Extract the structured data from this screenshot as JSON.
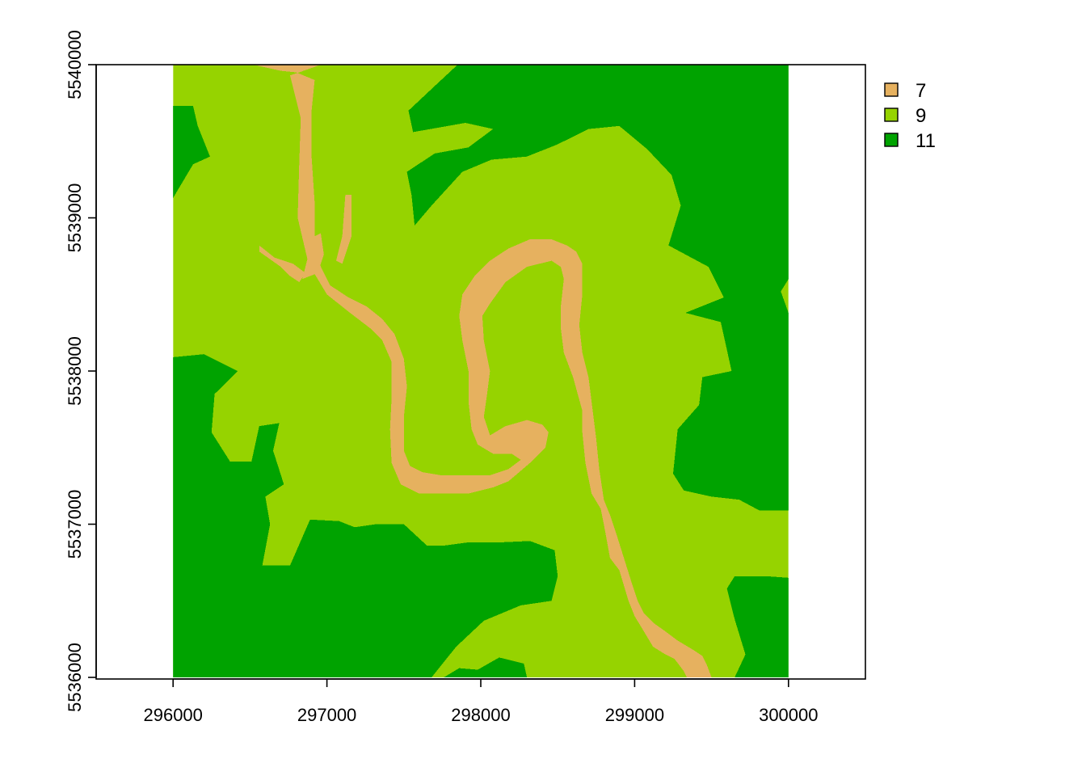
{
  "chart_data": {
    "type": "heatmap",
    "title": "",
    "xlabel": "",
    "ylabel": "",
    "xlim": [
      295500,
      300500
    ],
    "ylim": [
      5536000,
      5540000
    ],
    "raster_extent": {
      "xmin": 296000,
      "xmax": 300000,
      "ymin": 5536000,
      "ymax": 5540000
    },
    "x_ticks": [
      {
        "value": 296000,
        "label": "296000"
      },
      {
        "value": 297000,
        "label": "297000"
      },
      {
        "value": 298000,
        "label": "298000"
      },
      {
        "value": 299000,
        "label": "299000"
      },
      {
        "value": 300000,
        "label": "300000"
      }
    ],
    "y_ticks": [
      {
        "value": 5536000,
        "label": "5536000"
      },
      {
        "value": 5537000,
        "label": "5537000"
      },
      {
        "value": 5538000,
        "label": "5538000"
      },
      {
        "value": 5539000,
        "label": "5539000"
      },
      {
        "value": 5540000,
        "label": "5540000"
      }
    ],
    "legend": {
      "placement": "top-right",
      "entries": [
        {
          "label": "7",
          "value": 7,
          "color": "#E6B15F"
        },
        {
          "label": "9",
          "value": 9,
          "color": "#96D300"
        },
        {
          "label": "11",
          "value": 11,
          "color": "#00A300"
        }
      ]
    },
    "zones": [
      {
        "name": "left-upper-dark",
        "value": 11,
        "points": [
          [
            296000,
            5539730
          ],
          [
            296130,
            5539730
          ],
          [
            296160,
            5539600
          ],
          [
            296240,
            5539400
          ],
          [
            296130,
            5539350
          ],
          [
            296000,
            5539130
          ]
        ]
      },
      {
        "name": "top-right-dark",
        "value": 11,
        "points": [
          [
            297850,
            5540000
          ],
          [
            300000,
            5540000
          ],
          [
            300000,
            5538600
          ],
          [
            299950,
            5538520
          ],
          [
            300000,
            5538380
          ],
          [
            300000,
            5537090
          ],
          [
            299810,
            5537090
          ],
          [
            299680,
            5537160
          ],
          [
            299500,
            5537180
          ],
          [
            299320,
            5537220
          ],
          [
            299250,
            5537330
          ],
          [
            299280,
            5537620
          ],
          [
            299420,
            5537780
          ],
          [
            299580,
            5537920
          ],
          [
            299610,
            5537680
          ],
          [
            299400,
            5537620
          ],
          [
            299440,
            5537960
          ],
          [
            299630,
            5538000
          ],
          [
            299560,
            5538320
          ],
          [
            299330,
            5538380
          ],
          [
            299580,
            5538480
          ],
          [
            299480,
            5538680
          ],
          [
            299220,
            5538820
          ],
          [
            299300,
            5539080
          ],
          [
            299240,
            5539280
          ],
          [
            299080,
            5539450
          ],
          [
            298900,
            5539600
          ],
          [
            298700,
            5539580
          ],
          [
            298500,
            5539480
          ],
          [
            298300,
            5539400
          ],
          [
            298070,
            5539380
          ],
          [
            297880,
            5539300
          ],
          [
            297680,
            5539080
          ],
          [
            297570,
            5538950
          ],
          [
            297550,
            5539150
          ],
          [
            297520,
            5539300
          ],
          [
            297700,
            5539420
          ],
          [
            297920,
            5539460
          ],
          [
            298080,
            5539580
          ],
          [
            297900,
            5539620
          ],
          [
            297560,
            5539560
          ],
          [
            297530,
            5539700
          ],
          [
            297700,
            5539860
          ],
          [
            297850,
            5540000
          ]
        ]
      },
      {
        "name": "left-lower-dark",
        "value": 11,
        "points": [
          [
            296000,
            5538090
          ],
          [
            296200,
            5538110
          ],
          [
            296420,
            5538000
          ],
          [
            296270,
            5537850
          ],
          [
            296250,
            5537600
          ],
          [
            296370,
            5537410
          ],
          [
            296510,
            5537410
          ],
          [
            296560,
            5537640
          ],
          [
            296690,
            5537660
          ],
          [
            296650,
            5537480
          ],
          [
            296720,
            5537260
          ],
          [
            296600,
            5537180
          ],
          [
            296630,
            5537000
          ],
          [
            296580,
            5536730
          ],
          [
            296760,
            5536730
          ],
          [
            296890,
            5537030
          ],
          [
            297080,
            5537020
          ],
          [
            297180,
            5536980
          ],
          [
            297320,
            5537000
          ],
          [
            297500,
            5537000
          ],
          [
            297650,
            5536860
          ],
          [
            297760,
            5536860
          ],
          [
            297910,
            5536880
          ],
          [
            298100,
            5536880
          ],
          [
            298320,
            5536890
          ],
          [
            298480,
            5536830
          ],
          [
            298500,
            5536660
          ],
          [
            298460,
            5536500
          ],
          [
            298260,
            5536470
          ],
          [
            298020,
            5536370
          ],
          [
            297840,
            5536200
          ],
          [
            297680,
            5536000
          ],
          [
            296000,
            5536000
          ]
        ]
      },
      {
        "name": "right-lower-dark",
        "value": 11,
        "points": [
          [
            299650,
            5536000
          ],
          [
            300000,
            5536000
          ],
          [
            300000,
            5536650
          ],
          [
            299860,
            5536660
          ],
          [
            299650,
            5536660
          ],
          [
            299600,
            5536580
          ],
          [
            299650,
            5536380
          ],
          [
            299720,
            5536150
          ]
        ]
      },
      {
        "name": "bottom-center-dark",
        "value": 11,
        "points": [
          [
            297760,
            5536000
          ],
          [
            298300,
            5536000
          ],
          [
            298280,
            5536090
          ],
          [
            298120,
            5536130
          ],
          [
            297980,
            5536050
          ],
          [
            297860,
            5536060
          ]
        ]
      },
      {
        "name": "river-west-trunk",
        "value": 7,
        "points": [
          [
            296520,
            5540000
          ],
          [
            296960,
            5540000
          ],
          [
            296820,
            5539950
          ],
          [
            296760,
            5539930
          ],
          [
            296830,
            5539650
          ],
          [
            296820,
            5539350
          ],
          [
            296810,
            5539000
          ],
          [
            296880,
            5538700
          ],
          [
            297000,
            5538500
          ],
          [
            297150,
            5538380
          ],
          [
            297280,
            5538280
          ],
          [
            297360,
            5538200
          ],
          [
            297420,
            5538060
          ],
          [
            297420,
            5537820
          ],
          [
            297410,
            5537620
          ],
          [
            297420,
            5537400
          ],
          [
            297480,
            5537260
          ],
          [
            297600,
            5537200
          ],
          [
            297760,
            5537200
          ],
          [
            297920,
            5537200
          ],
          [
            298080,
            5537240
          ],
          [
            298180,
            5537280
          ],
          [
            298320,
            5537400
          ],
          [
            298420,
            5537500
          ],
          [
            298440,
            5537600
          ],
          [
            298400,
            5537650
          ],
          [
            298300,
            5537680
          ],
          [
            298160,
            5537640
          ],
          [
            298060,
            5537580
          ],
          [
            298020,
            5537700
          ],
          [
            298040,
            5537840
          ],
          [
            298060,
            5538000
          ],
          [
            298020,
            5538200
          ],
          [
            298010,
            5538360
          ],
          [
            298060,
            5538440
          ],
          [
            298160,
            5538580
          ],
          [
            298300,
            5538680
          ],
          [
            298460,
            5538720
          ],
          [
            298520,
            5538680
          ],
          [
            298540,
            5538600
          ],
          [
            298520,
            5538420
          ],
          [
            298520,
            5538280
          ],
          [
            298540,
            5538120
          ],
          [
            298600,
            5537960
          ],
          [
            298660,
            5537740
          ],
          [
            298660,
            5537600
          ],
          [
            298680,
            5537400
          ],
          [
            298720,
            5537200
          ],
          [
            298780,
            5537100
          ],
          [
            298800,
            5537000
          ],
          [
            298840,
            5536780
          ],
          [
            298900,
            5536700
          ],
          [
            298960,
            5536500
          ],
          [
            299000,
            5536400
          ],
          [
            299060,
            5536300
          ],
          [
            299120,
            5536200
          ],
          [
            299200,
            5536150
          ],
          [
            299260,
            5536120
          ],
          [
            299320,
            5536040
          ],
          [
            299340,
            5536000
          ],
          [
            299500,
            5536000
          ],
          [
            299470,
            5536080
          ],
          [
            299440,
            5536140
          ],
          [
            299380,
            5536180
          ],
          [
            299280,
            5536240
          ],
          [
            299200,
            5536300
          ],
          [
            299130,
            5536350
          ],
          [
            299060,
            5536420
          ],
          [
            299020,
            5536500
          ],
          [
            298980,
            5536620
          ],
          [
            298930,
            5536780
          ],
          [
            298880,
            5536940
          ],
          [
            298840,
            5537060
          ],
          [
            298800,
            5537160
          ],
          [
            298770,
            5537360
          ],
          [
            298750,
            5537560
          ],
          [
            298720,
            5537800
          ],
          [
            298700,
            5537960
          ],
          [
            298660,
            5538120
          ],
          [
            298640,
            5538300
          ],
          [
            298660,
            5538500
          ],
          [
            298660,
            5538700
          ],
          [
            298620,
            5538780
          ],
          [
            298560,
            5538820
          ],
          [
            298460,
            5538860
          ],
          [
            298320,
            5538860
          ],
          [
            298180,
            5538800
          ],
          [
            298060,
            5538720
          ],
          [
            297960,
            5538620
          ],
          [
            297880,
            5538500
          ],
          [
            297860,
            5538360
          ],
          [
            297880,
            5538200
          ],
          [
            297920,
            5538000
          ],
          [
            297920,
            5537800
          ],
          [
            297940,
            5537620
          ],
          [
            297980,
            5537520
          ],
          [
            298080,
            5537460
          ],
          [
            298200,
            5537460
          ],
          [
            298260,
            5537420
          ],
          [
            298180,
            5537360
          ],
          [
            298060,
            5537320
          ],
          [
            297880,
            5537320
          ],
          [
            297740,
            5537320
          ],
          [
            297620,
            5537340
          ],
          [
            297540,
            5537380
          ],
          [
            297500,
            5537480
          ],
          [
            297500,
            5537700
          ],
          [
            297520,
            5537900
          ],
          [
            297500,
            5538080
          ],
          [
            297440,
            5538240
          ],
          [
            297360,
            5538340
          ],
          [
            297260,
            5538420
          ],
          [
            297140,
            5538480
          ],
          [
            297020,
            5538560
          ],
          [
            296960,
            5538680
          ],
          [
            296920,
            5538860
          ],
          [
            296920,
            5539100
          ],
          [
            296900,
            5539400
          ],
          [
            296900,
            5539700
          ],
          [
            296920,
            5539900
          ],
          [
            296800,
            5539950
          ],
          [
            296700,
            5539960
          ]
        ]
      },
      {
        "name": "river-spur-west",
        "value": 7,
        "points": [
          [
            296560,
            5538780
          ],
          [
            296700,
            5538680
          ],
          [
            296760,
            5538620
          ],
          [
            296820,
            5538580
          ],
          [
            296860,
            5538640
          ],
          [
            296780,
            5538700
          ],
          [
            296660,
            5538740
          ],
          [
            296560,
            5538820
          ]
        ]
      },
      {
        "name": "river-spur-north",
        "value": 7,
        "points": [
          [
            296840,
            5538600
          ],
          [
            296880,
            5538760
          ],
          [
            296880,
            5538860
          ],
          [
            296960,
            5538900
          ],
          [
            296980,
            5538760
          ],
          [
            296940,
            5538640
          ]
        ]
      },
      {
        "name": "river-spur-east",
        "value": 7,
        "points": [
          [
            297100,
            5538700
          ],
          [
            297160,
            5538880
          ],
          [
            297160,
            5539150
          ],
          [
            297120,
            5539150
          ],
          [
            297100,
            5538880
          ],
          [
            297060,
            5538720
          ]
        ]
      }
    ]
  }
}
